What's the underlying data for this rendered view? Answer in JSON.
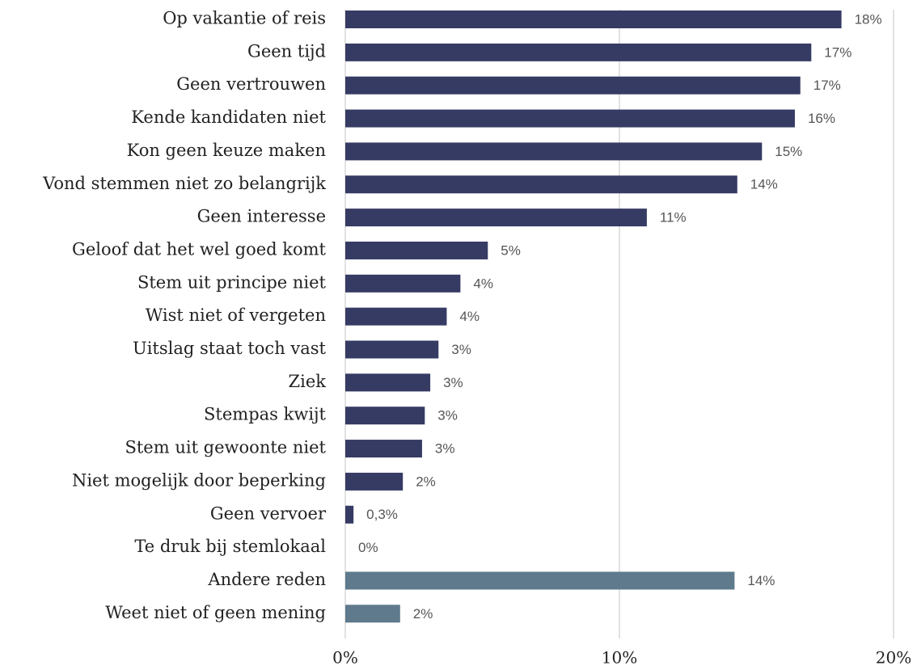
{
  "chart_data": {
    "type": "bar",
    "orientation": "horizontal",
    "categories": [
      "Op vakantie of reis",
      "Geen tijd",
      "Geen vertrouwen",
      "Kende kandidaten niet",
      "Kon geen keuze maken",
      "Vond stemmen niet zo belangrijk",
      "Geen interesse",
      "Geloof dat het wel goed komt",
      "Stem uit principe niet",
      "Wist niet of vergeten",
      "Uitslag staat toch vast",
      "Ziek",
      "Stempas kwijt",
      "Stem uit gewoonte niet",
      "Niet mogelijk door beperking",
      "Geen vervoer",
      "Te druk bij stemlokaal",
      "Andere reden",
      "Weet niet of geen mening"
    ],
    "values": [
      18.1,
      17.0,
      16.6,
      16.4,
      15.2,
      14.3,
      11.0,
      5.2,
      4.2,
      3.7,
      3.4,
      3.1,
      2.9,
      2.8,
      2.1,
      0.3,
      0,
      14.2,
      2.0
    ],
    "value_labels": [
      "18%",
      "17%",
      "17%",
      "16%",
      "15%",
      "14%",
      "11%",
      "5%",
      "4%",
      "4%",
      "3%",
      "3%",
      "3%",
      "3%",
      "2%",
      "0,3%",
      "0%",
      "14%",
      "2%"
    ],
    "colors": [
      "#363b64",
      "#363b64",
      "#363b64",
      "#363b64",
      "#363b64",
      "#363b64",
      "#363b64",
      "#363b64",
      "#363b64",
      "#363b64",
      "#363b64",
      "#363b64",
      "#363b64",
      "#363b64",
      "#363b64",
      "#363b64",
      "#363b64",
      "#5e7a8c",
      "#5e7a8c"
    ],
    "xlim": [
      0,
      20
    ],
    "xticks": [
      {
        "value": 0,
        "label": "0%"
      },
      {
        "value": 10,
        "label": "10%"
      },
      {
        "value": 20,
        "label": "20%"
      }
    ],
    "grid": true
  }
}
